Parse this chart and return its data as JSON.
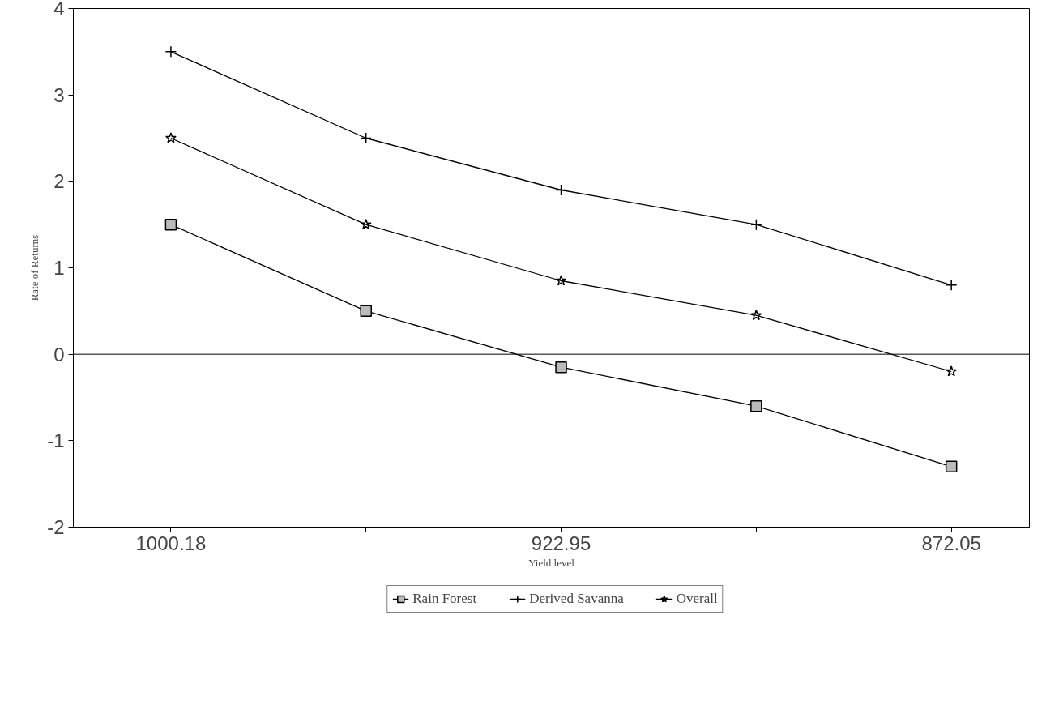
{
  "chart_data": {
    "type": "line",
    "xlabel": "Yield level",
    "ylabel": "Rate of Returns",
    "categories": [
      "1000.18",
      null,
      "922.95",
      null,
      "872.05"
    ],
    "series": [
      {
        "name": "Rain Forest",
        "color": "#000000",
        "marker": "square",
        "values": [
          1.5,
          0.5,
          -0.15,
          -0.6,
          -1.3
        ]
      },
      {
        "name": "Derived Savanna",
        "color": "#000000",
        "marker": "cross",
        "values": [
          3.5,
          2.5,
          1.9,
          1.5,
          0.8
        ]
      },
      {
        "name": "Overall",
        "color": "#000000",
        "marker": "star",
        "values": [
          2.5,
          1.5,
          0.85,
          0.45,
          -0.2
        ]
      }
    ],
    "ylim": [
      -2,
      4
    ],
    "yticks": [
      -2,
      -1,
      0,
      1,
      2,
      3,
      4
    ],
    "ref_lines": [
      {
        "axis": "y",
        "value": 0,
        "color": "#000000"
      }
    ],
    "grid": false,
    "legend": "bottom",
    "line_style": "solid"
  }
}
